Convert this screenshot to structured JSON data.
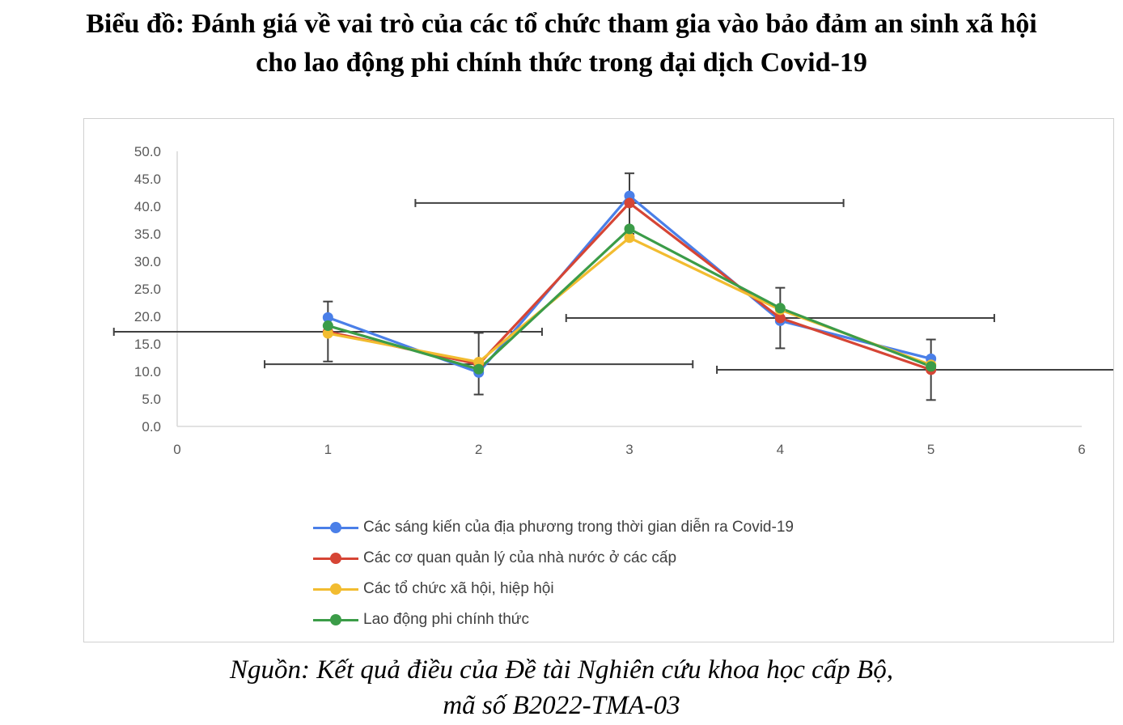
{
  "title_line1": "Biểu đồ: Đánh giá về vai trò của các tổ chức tham gia vào bảo đảm an sinh xã hội",
  "title_line2": "cho lao động phi chính thức trong đại dịch Covid-19",
  "source_line1": "Nguồn: Kết quả điều của Đề tài Nghiên cứu khoa học cấp Bộ,",
  "source_line2": "mã số B2022-TMA-03",
  "chart_data": {
    "type": "scatter",
    "title": "",
    "xlabel": "",
    "ylabel": "",
    "xlim": [
      0,
      6
    ],
    "ylim": [
      0,
      50
    ],
    "x_ticks": [
      "0",
      "1",
      "2",
      "3",
      "4",
      "5",
      "6"
    ],
    "y_ticks": [
      "0.0",
      "5.0",
      "10.0",
      "15.0",
      "20.0",
      "25.0",
      "30.0",
      "35.0",
      "40.0",
      "45.0",
      "50.0"
    ],
    "grid": false,
    "legend_position": "bottom",
    "lines": true,
    "markers": true,
    "x": [
      1,
      2,
      3,
      4,
      5
    ],
    "series": [
      {
        "name": "Các sáng kiến của địa phương trong thời gian diễn ra Covid-19",
        "color": "#4a7fe8",
        "values": [
          19.8,
          9.8,
          41.9,
          19.2,
          12.3
        ]
      },
      {
        "name": "Các cơ quan quản lý của nhà nước ở các cấp",
        "color": "#d64535",
        "values": [
          17.2,
          11.3,
          40.6,
          19.7,
          10.3
        ]
      },
      {
        "name": "Các tổ chức xã hội, hiệp hội",
        "color": "#f2bc30",
        "values": [
          16.9,
          11.7,
          34.3,
          21.2,
          11.2
        ]
      },
      {
        "name": "Lao động phi chính thức",
        "color": "#3b9c48",
        "values": [
          18.3,
          10.4,
          35.9,
          21.5,
          10.9
        ]
      }
    ],
    "error_bars": [
      {
        "x": 1,
        "y": 17.2,
        "x_err": 1.42,
        "y_low": 11.8,
        "y_high": 22.7
      },
      {
        "x": 2,
        "y": 11.3,
        "x_err": 1.42,
        "y_low": 5.8,
        "y_high": 17.0
      },
      {
        "x": 3,
        "y": 40.6,
        "x_err": 1.42,
        "y_low": 35.0,
        "y_high": 46.0
      },
      {
        "x": 4,
        "y": 19.7,
        "x_err": 1.42,
        "y_low": 14.2,
        "y_high": 25.2
      },
      {
        "x": 5,
        "y": 10.3,
        "x_err": 1.42,
        "y_low": 4.8,
        "y_high": 15.8
      }
    ],
    "error_bar_color": "#404040"
  }
}
